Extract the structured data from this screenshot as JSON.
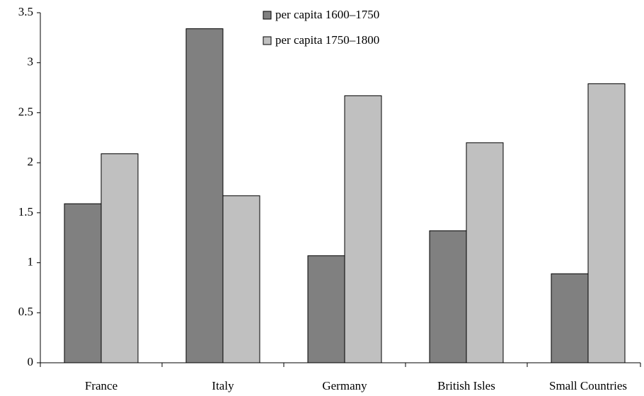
{
  "chart_data": {
    "type": "bar",
    "categories": [
      "France",
      "Italy",
      "Germany",
      "British Isles",
      "Small Countries"
    ],
    "series": [
      {
        "name": "per capita 1600–1750",
        "color": "#808080",
        "values": [
          1.59,
          3.34,
          1.07,
          1.32,
          0.89
        ]
      },
      {
        "name": "per capita 1750–1800",
        "color": "#c0c0c0",
        "values": [
          2.09,
          1.67,
          2.67,
          2.2,
          2.79
        ]
      }
    ],
    "ylim": [
      0,
      3.5
    ],
    "yticks": [
      0,
      0.5,
      1,
      1.5,
      2,
      2.5,
      3,
      3.5
    ],
    "grid": false
  }
}
